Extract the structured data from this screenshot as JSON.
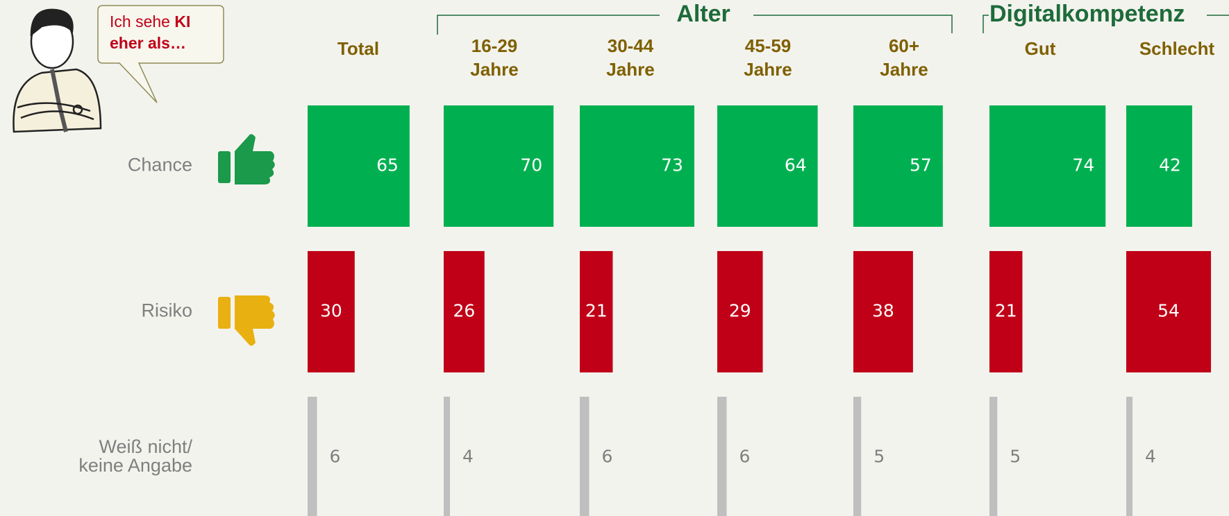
{
  "chart_data": {
    "type": "bar",
    "bubble": [
      "Ich sehe",
      "KI",
      "eher als…"
    ],
    "groups": [
      {
        "label": "Alter"
      },
      {
        "label": "Digitalkompetenz"
      }
    ],
    "categories": [
      "Total",
      "16-29 Jahre",
      "30-44 Jahre",
      "45-59 Jahre",
      "60+ Jahre",
      "Gut",
      "Schlecht"
    ],
    "series": [
      {
        "name": "Chance",
        "color": "#00b050",
        "values": [
          65,
          70,
          73,
          64,
          57,
          74,
          42
        ]
      },
      {
        "name": "Risiko",
        "color": "#c00017",
        "values": [
          30,
          26,
          21,
          29,
          38,
          21,
          54
        ]
      },
      {
        "name": "Weiß nicht/ keine Angabe",
        "color": "#bfbfbf",
        "values": [
          6,
          4,
          6,
          6,
          5,
          5,
          4
        ]
      }
    ]
  }
}
